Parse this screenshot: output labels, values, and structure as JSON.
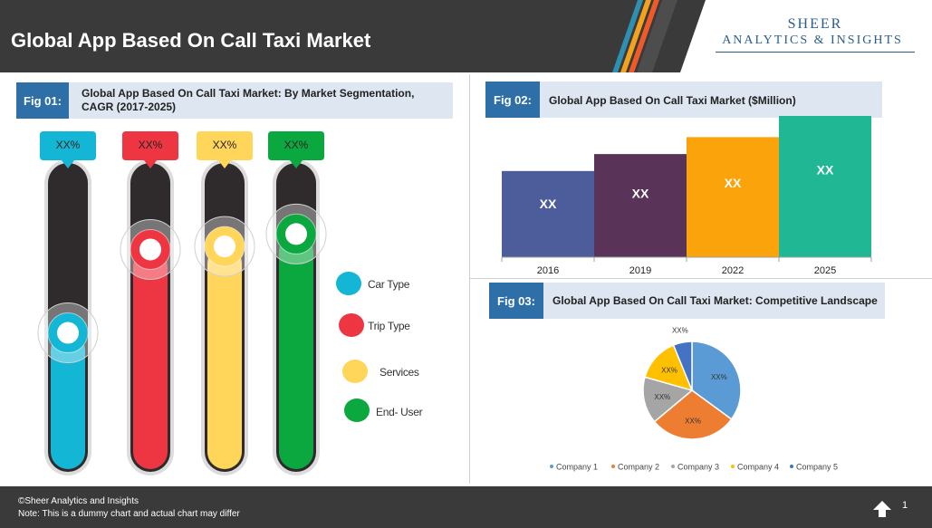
{
  "header": {
    "title": "Global App Based On Call Taxi Market",
    "logo_top": "SHEER",
    "logo_bottom": "ANALYTICS & INSIGHTS"
  },
  "fig1": {
    "tag": "Fig 01:",
    "title": "Global App Based On Call Taxi Market: By Market Segmentation, CAGR (2017-2025)"
  },
  "fig2": {
    "tag": "Fig 02:",
    "title": "Global App Based On Call Taxi Market ($Million)"
  },
  "fig3": {
    "tag": "Fig 03:",
    "title": "Global App Based On Call Taxi Market: Competitive Landscape"
  },
  "footer": {
    "copyright": "©Sheer Analytics and Insights",
    "note": "Note: This is a dummy chart and actual chart may differ",
    "page": "1"
  },
  "colors": {
    "car_type": "#13b6d4",
    "trip_type": "#ee3643",
    "services": "#ffd55a",
    "end_user": "#0aa83f"
  },
  "chart_data": [
    {
      "type": "bar",
      "subtype": "thermometer-gauges",
      "categories": [
        "Car Type",
        "Trip Type",
        "Services",
        "End- User"
      ],
      "data_labels": [
        "XX%",
        "XX%",
        "XX%",
        "XX%"
      ],
      "level_fraction": [
        0.45,
        0.72,
        0.73,
        0.77
      ],
      "colors": [
        "#13b6d4",
        "#ee3643",
        "#ffd55a",
        "#0aa83f"
      ],
      "legend": [
        "Car Type",
        "Trip Type",
        "Services",
        "End- User"
      ],
      "legend_position": "right"
    },
    {
      "type": "bar",
      "categories": [
        "2016",
        "2019",
        "2022",
        "2025"
      ],
      "data_labels": [
        "XX",
        "XX",
        "XX",
        "XX"
      ],
      "relative_values": [
        0.61,
        0.73,
        0.85,
        1.0
      ],
      "colors": [
        "#4d5d9b",
        "#5a3358",
        "#fba30a",
        "#20b894"
      ]
    },
    {
      "type": "pie",
      "labels": [
        "Company 1",
        "Company 2",
        "Company 3",
        "Company 4",
        "Company 5"
      ],
      "data_labels": [
        "XX%",
        "XX%",
        "XX%",
        "XX%",
        "XX%"
      ],
      "values": [
        34,
        28,
        15,
        14,
        6
      ],
      "colors": [
        "#5b9bd5",
        "#ed7d31",
        "#a5a5a5",
        "#ffc000",
        "#4472c4"
      ],
      "legend_position": "bottom"
    }
  ]
}
